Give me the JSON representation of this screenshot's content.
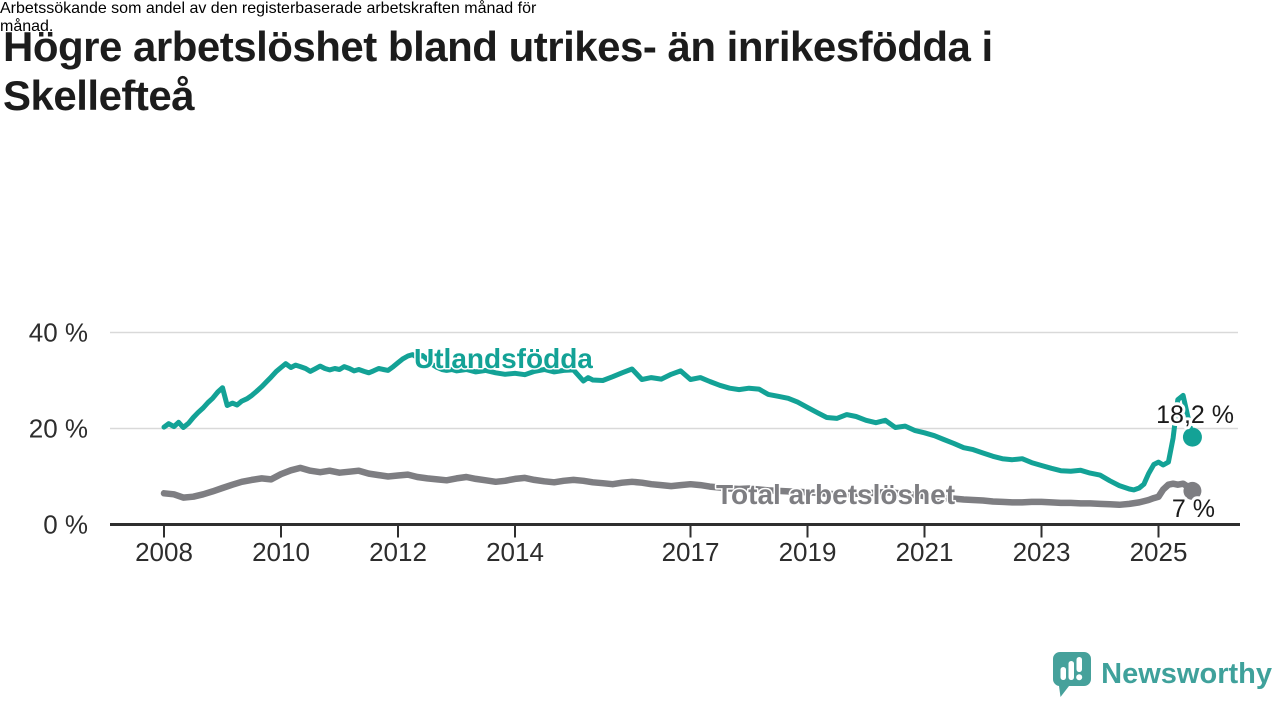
{
  "header": {
    "title_line1": "Högre arbetslöshet bland utrikes- än inrikesfödda i",
    "title_line2": "Skellefteå",
    "subtitle_line1": "Arbetssökande som andel av den registerbaserade arbetskraften månad för",
    "subtitle_line2": "månad."
  },
  "chart_data": {
    "type": "line",
    "unit": "%",
    "grid": "horizontal",
    "legend_position": "inline-on-lines",
    "x_ticks": [
      2008,
      2010,
      2012,
      2014,
      2017,
      2019,
      2021,
      2023,
      2025
    ],
    "y_ticks": [
      0,
      20,
      40
    ],
    "y_tick_suffix": " %",
    "xlim": [
      2007.1,
      2026.0
    ],
    "ylim": [
      0,
      42
    ],
    "series": [
      {
        "name": "Utlandsfödda",
        "color": "#13a296",
        "end_label": "18,2 %",
        "end_value": 18.2,
        "points": [
          [
            2008.0,
            20.3
          ],
          [
            2008.08,
            21.0
          ],
          [
            2008.17,
            20.4
          ],
          [
            2008.25,
            21.3
          ],
          [
            2008.33,
            20.2
          ],
          [
            2008.42,
            21.1
          ],
          [
            2008.5,
            22.3
          ],
          [
            2008.58,
            23.3
          ],
          [
            2008.67,
            24.3
          ],
          [
            2008.75,
            25.4
          ],
          [
            2008.83,
            26.3
          ],
          [
            2008.92,
            27.6
          ],
          [
            2009.0,
            28.5
          ],
          [
            2009.08,
            24.8
          ],
          [
            2009.17,
            25.3
          ],
          [
            2009.25,
            24.9
          ],
          [
            2009.33,
            25.7
          ],
          [
            2009.42,
            26.2
          ],
          [
            2009.5,
            26.9
          ],
          [
            2009.58,
            27.7
          ],
          [
            2009.67,
            28.7
          ],
          [
            2009.75,
            29.7
          ],
          [
            2009.83,
            30.7
          ],
          [
            2009.92,
            31.9
          ],
          [
            2010.0,
            32.7
          ],
          [
            2010.08,
            33.5
          ],
          [
            2010.17,
            32.7
          ],
          [
            2010.25,
            33.2
          ],
          [
            2010.33,
            32.9
          ],
          [
            2010.42,
            32.5
          ],
          [
            2010.5,
            31.9
          ],
          [
            2010.58,
            32.4
          ],
          [
            2010.67,
            33.0
          ],
          [
            2010.75,
            32.5
          ],
          [
            2010.83,
            32.2
          ],
          [
            2010.92,
            32.5
          ],
          [
            2011.0,
            32.3
          ],
          [
            2011.08,
            32.9
          ],
          [
            2011.17,
            32.5
          ],
          [
            2011.25,
            32.0
          ],
          [
            2011.33,
            32.3
          ],
          [
            2011.42,
            31.9
          ],
          [
            2011.5,
            31.6
          ],
          [
            2011.58,
            32.0
          ],
          [
            2011.67,
            32.5
          ],
          [
            2011.75,
            32.3
          ],
          [
            2011.83,
            32.1
          ],
          [
            2011.92,
            32.9
          ],
          [
            2012.0,
            33.7
          ],
          [
            2012.08,
            34.5
          ],
          [
            2012.17,
            35.1
          ],
          [
            2012.25,
            35.4
          ],
          [
            2012.33,
            34.8
          ],
          [
            2012.42,
            35.2
          ],
          [
            2012.5,
            34.4
          ],
          [
            2012.58,
            33.4
          ],
          [
            2012.67,
            32.7
          ],
          [
            2012.75,
            32.3
          ],
          [
            2012.83,
            32.1
          ],
          [
            2012.92,
            32.3
          ],
          [
            2013.0,
            32.0
          ],
          [
            2013.17,
            32.3
          ],
          [
            2013.33,
            31.8
          ],
          [
            2013.5,
            32.1
          ],
          [
            2013.67,
            31.6
          ],
          [
            2013.83,
            31.3
          ],
          [
            2014.0,
            31.5
          ],
          [
            2014.17,
            31.2
          ],
          [
            2014.33,
            31.9
          ],
          [
            2014.5,
            32.3
          ],
          [
            2014.67,
            31.8
          ],
          [
            2014.83,
            32.1
          ],
          [
            2015.0,
            32.2
          ],
          [
            2015.17,
            29.9
          ],
          [
            2015.25,
            30.6
          ],
          [
            2015.33,
            30.1
          ],
          [
            2015.5,
            30.0
          ],
          [
            2015.67,
            30.8
          ],
          [
            2015.83,
            31.6
          ],
          [
            2016.0,
            32.4
          ],
          [
            2016.17,
            30.2
          ],
          [
            2016.33,
            30.6
          ],
          [
            2016.5,
            30.3
          ],
          [
            2016.67,
            31.3
          ],
          [
            2016.83,
            32.0
          ],
          [
            2017.0,
            30.2
          ],
          [
            2017.17,
            30.6
          ],
          [
            2017.33,
            29.8
          ],
          [
            2017.5,
            29.0
          ],
          [
            2017.67,
            28.4
          ],
          [
            2017.83,
            28.1
          ],
          [
            2018.0,
            28.4
          ],
          [
            2018.17,
            28.2
          ],
          [
            2018.33,
            27.1
          ],
          [
            2018.5,
            26.7
          ],
          [
            2018.67,
            26.3
          ],
          [
            2018.83,
            25.5
          ],
          [
            2019.0,
            24.4
          ],
          [
            2019.17,
            23.3
          ],
          [
            2019.33,
            22.3
          ],
          [
            2019.5,
            22.1
          ],
          [
            2019.67,
            22.9
          ],
          [
            2019.83,
            22.5
          ],
          [
            2020.0,
            21.7
          ],
          [
            2020.17,
            21.2
          ],
          [
            2020.33,
            21.7
          ],
          [
            2020.5,
            20.2
          ],
          [
            2020.67,
            20.5
          ],
          [
            2020.83,
            19.6
          ],
          [
            2021.0,
            19.1
          ],
          [
            2021.17,
            18.5
          ],
          [
            2021.33,
            17.7
          ],
          [
            2021.5,
            16.9
          ],
          [
            2021.67,
            16.0
          ],
          [
            2021.83,
            15.6
          ],
          [
            2022.0,
            14.9
          ],
          [
            2022.17,
            14.2
          ],
          [
            2022.33,
            13.7
          ],
          [
            2022.5,
            13.5
          ],
          [
            2022.67,
            13.7
          ],
          [
            2022.83,
            12.9
          ],
          [
            2023.0,
            12.3
          ],
          [
            2023.17,
            11.7
          ],
          [
            2023.33,
            11.2
          ],
          [
            2023.5,
            11.1
          ],
          [
            2023.67,
            11.3
          ],
          [
            2023.83,
            10.7
          ],
          [
            2024.0,
            10.3
          ],
          [
            2024.17,
            9.1
          ],
          [
            2024.33,
            8.1
          ],
          [
            2024.5,
            7.4
          ],
          [
            2024.58,
            7.2
          ],
          [
            2024.67,
            7.6
          ],
          [
            2024.75,
            8.4
          ],
          [
            2024.83,
            10.6
          ],
          [
            2024.92,
            12.5
          ],
          [
            2025.0,
            13.0
          ],
          [
            2025.08,
            12.4
          ],
          [
            2025.17,
            13.0
          ],
          [
            2025.25,
            18.0
          ],
          [
            2025.33,
            26.0
          ],
          [
            2025.42,
            26.9
          ],
          [
            2025.58,
            18.2
          ]
        ]
      },
      {
        "name": "Total arbetslöshet",
        "color": "#7e7e82",
        "end_label": "7 %",
        "end_value": 7.0,
        "points": [
          [
            2008.0,
            6.5
          ],
          [
            2008.17,
            6.3
          ],
          [
            2008.33,
            5.6
          ],
          [
            2008.5,
            5.8
          ],
          [
            2008.67,
            6.3
          ],
          [
            2008.83,
            6.9
          ],
          [
            2009.0,
            7.6
          ],
          [
            2009.17,
            8.3
          ],
          [
            2009.33,
            8.9
          ],
          [
            2009.5,
            9.3
          ],
          [
            2009.67,
            9.6
          ],
          [
            2009.83,
            9.4
          ],
          [
            2010.0,
            10.5
          ],
          [
            2010.17,
            11.3
          ],
          [
            2010.33,
            11.8
          ],
          [
            2010.5,
            11.2
          ],
          [
            2010.67,
            10.9
          ],
          [
            2010.83,
            11.2
          ],
          [
            2011.0,
            10.8
          ],
          [
            2011.17,
            11.0
          ],
          [
            2011.33,
            11.2
          ],
          [
            2011.5,
            10.6
          ],
          [
            2011.67,
            10.3
          ],
          [
            2011.83,
            10.0
          ],
          [
            2012.0,
            10.2
          ],
          [
            2012.17,
            10.4
          ],
          [
            2012.33,
            9.9
          ],
          [
            2012.5,
            9.6
          ],
          [
            2012.67,
            9.4
          ],
          [
            2012.83,
            9.2
          ],
          [
            2013.0,
            9.6
          ],
          [
            2013.17,
            9.9
          ],
          [
            2013.33,
            9.5
          ],
          [
            2013.5,
            9.2
          ],
          [
            2013.67,
            8.9
          ],
          [
            2013.83,
            9.1
          ],
          [
            2014.0,
            9.5
          ],
          [
            2014.17,
            9.7
          ],
          [
            2014.33,
            9.3
          ],
          [
            2014.5,
            9.0
          ],
          [
            2014.67,
            8.8
          ],
          [
            2014.83,
            9.1
          ],
          [
            2015.0,
            9.3
          ],
          [
            2015.17,
            9.1
          ],
          [
            2015.33,
            8.8
          ],
          [
            2015.5,
            8.6
          ],
          [
            2015.67,
            8.4
          ],
          [
            2015.83,
            8.7
          ],
          [
            2016.0,
            8.9
          ],
          [
            2016.17,
            8.7
          ],
          [
            2016.33,
            8.4
          ],
          [
            2016.5,
            8.2
          ],
          [
            2016.67,
            8.0
          ],
          [
            2016.83,
            8.2
          ],
          [
            2017.0,
            8.4
          ],
          [
            2017.17,
            8.2
          ],
          [
            2017.33,
            7.9
          ],
          [
            2017.5,
            7.7
          ],
          [
            2017.67,
            7.5
          ],
          [
            2017.83,
            7.4
          ],
          [
            2018.0,
            7.5
          ],
          [
            2018.17,
            7.3
          ],
          [
            2018.33,
            7.1
          ],
          [
            2018.5,
            7.0
          ],
          [
            2018.67,
            6.9
          ],
          [
            2018.83,
            6.8
          ],
          [
            2019.0,
            6.7
          ],
          [
            2019.17,
            6.6
          ],
          [
            2019.33,
            6.4
          ],
          [
            2019.5,
            6.3
          ],
          [
            2019.67,
            6.3
          ],
          [
            2019.83,
            6.4
          ],
          [
            2020.0,
            6.5
          ],
          [
            2020.17,
            6.6
          ],
          [
            2020.33,
            6.7
          ],
          [
            2020.5,
            6.6
          ],
          [
            2020.67,
            6.4
          ],
          [
            2020.83,
            6.2
          ],
          [
            2021.0,
            5.9
          ],
          [
            2021.17,
            5.7
          ],
          [
            2021.33,
            5.5
          ],
          [
            2021.5,
            5.4
          ],
          [
            2021.67,
            5.2
          ],
          [
            2021.83,
            5.1
          ],
          [
            2022.0,
            5.0
          ],
          [
            2022.17,
            4.8
          ],
          [
            2022.33,
            4.7
          ],
          [
            2022.5,
            4.6
          ],
          [
            2022.67,
            4.6
          ],
          [
            2022.83,
            4.7
          ],
          [
            2023.0,
            4.7
          ],
          [
            2023.17,
            4.6
          ],
          [
            2023.33,
            4.5
          ],
          [
            2023.5,
            4.5
          ],
          [
            2023.67,
            4.4
          ],
          [
            2023.83,
            4.4
          ],
          [
            2024.0,
            4.3
          ],
          [
            2024.17,
            4.2
          ],
          [
            2024.33,
            4.1
          ],
          [
            2024.5,
            4.3
          ],
          [
            2024.67,
            4.6
          ],
          [
            2024.83,
            5.1
          ],
          [
            2024.92,
            5.5
          ],
          [
            2025.0,
            5.8
          ],
          [
            2025.08,
            7.3
          ],
          [
            2025.17,
            8.3
          ],
          [
            2025.25,
            8.5
          ],
          [
            2025.33,
            8.3
          ],
          [
            2025.42,
            8.5
          ],
          [
            2025.5,
            7.9
          ],
          [
            2025.58,
            7.0
          ]
        ]
      }
    ]
  },
  "branding": {
    "name": "Newsworthy",
    "brand_color": "#3fa19b",
    "bubble_color": "#46a19b"
  },
  "colors": {
    "background": "#ffffff",
    "title_text": "#1c1c1c",
    "axis": "#2f2f2f",
    "gridline": "#d9d9d9",
    "annotation_text": "#1a1a1a"
  }
}
